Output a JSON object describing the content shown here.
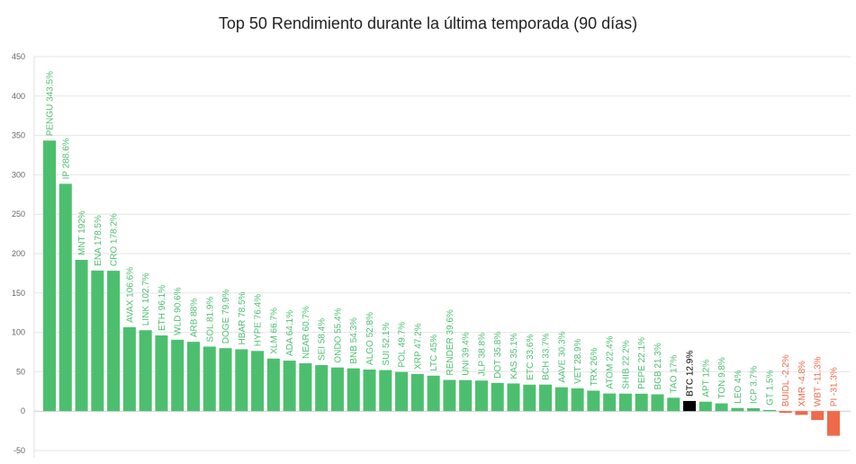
{
  "chart_data": {
    "type": "bar",
    "title": "Top 50 Rendimiento durante la última temporada (90 días)",
    "xlabel": "",
    "ylabel": "",
    "ylim": [
      -50,
      450
    ],
    "yticks": [
      -50,
      0,
      50,
      100,
      150,
      200,
      250,
      300,
      350,
      400,
      450
    ],
    "grid": true,
    "legend": "none",
    "colors": {
      "positive": "#4cbf6e",
      "negative": "#ee6a4a",
      "highlight": "#000000"
    },
    "categories": [
      "PENGU",
      "IP",
      "MNT",
      "ENA",
      "CRO",
      "AVAX",
      "LINK",
      "ETH",
      "WLD",
      "ARB",
      "SOL",
      "DOGE",
      "HBAR",
      "HYPE",
      "XLM",
      "ADA",
      "NEAR",
      "SEI",
      "ONDO",
      "BNB",
      "ALGO",
      "SUI",
      "POL",
      "XRP",
      "LTC",
      "RENDER",
      "UNI",
      "JLP",
      "DOT",
      "KAS",
      "ETC",
      "BCH",
      "AAVE",
      "VET",
      "TRX",
      "ATOM",
      "SHIB",
      "PEPE",
      "BGB",
      "TAO",
      "BTC",
      "APT",
      "TON",
      "LEO",
      "ICP",
      "GT",
      "BUIDL",
      "XMR",
      "WBT",
      "PI"
    ],
    "values": [
      343.5,
      288.6,
      192,
      178.5,
      178.2,
      106.6,
      102.7,
      96.1,
      90.6,
      88,
      81.9,
      79.9,
      78.5,
      76.4,
      66.7,
      64.1,
      60.7,
      58.4,
      55.4,
      54.3,
      52.8,
      52.1,
      49.7,
      47.2,
      45,
      39.6,
      39.4,
      38.8,
      35.8,
      35.1,
      33.6,
      33.7,
      30.3,
      28.9,
      26,
      22.4,
      22.2,
      22.1,
      21.3,
      17,
      12.9,
      12,
      9.8,
      4,
      3.7,
      1.5,
      -2.2,
      -4.8,
      -11.3,
      -31.3
    ],
    "labels": [
      "PENGU 343.5%",
      "IP 288.6%",
      "MNT 192%",
      "ENA 178.5%",
      "CRO 178.2%",
      "AVAX 106.6%",
      "LINK 102.7%",
      "ETH 96.1%",
      "WLD 90.6%",
      "ARB 88%",
      "SOL 81.9%",
      "DOGE 79.9%",
      "HBAR 78.5%",
      "HYPE 76.4%",
      "XLM 66.7%",
      "ADA 64.1%",
      "NEAR 60.7%",
      "SEI 58.4%",
      "ONDO 55.4%",
      "BNB 54.3%",
      "ALGO 52.8%",
      "SUI 52.1%",
      "POL 49.7%",
      "XRP 47.2%",
      "LTC 45%",
      "RENDER 39.6%",
      "UNI 39.4%",
      "JLP 38.8%",
      "DOT 35.8%",
      "KAS 35.1%",
      "ETC 33.6%",
      "BCH 33.7%",
      "AAVE 30.3%",
      "VET 28.9%",
      "TRX 26%",
      "ATOM 22.4%",
      "SHIB 22.2%",
      "PEPE 22.1%",
      "BGB 21.3%",
      "TAO 17%",
      "BTC 12.9%",
      "APT 12%",
      "TON 9.8%",
      "LEO 4%",
      "ICP 3.7%",
      "GT 1.5%",
      "BUIDL -2.2%",
      "XMR -4.8%",
      "WBT -11.3%",
      "PI -31.3%"
    ],
    "highlight": "BTC"
  }
}
